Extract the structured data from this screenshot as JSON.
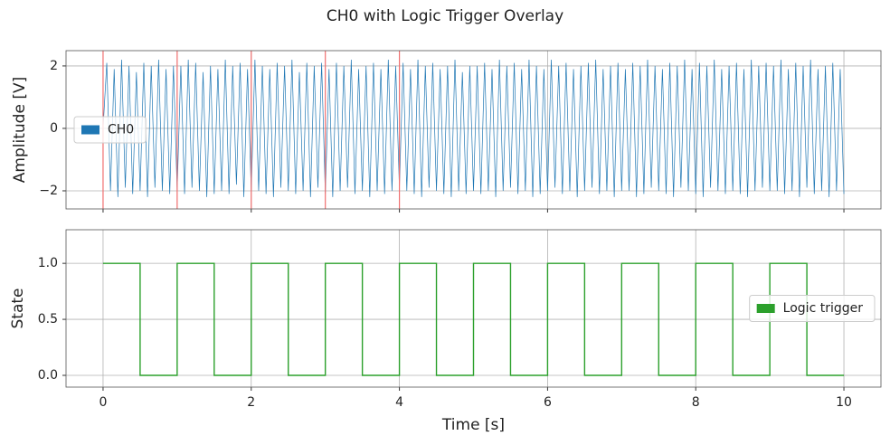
{
  "title": "CH0 with Logic Trigger Overlay",
  "chart_data": [
    {
      "type": "line",
      "ylabel": "Amplitude [V]",
      "xlim": [
        -0.5,
        10.5
      ],
      "ylim": [
        -2.58,
        2.49
      ],
      "xticks": [
        0,
        2,
        4,
        6,
        8,
        10
      ],
      "xtick_labels": false,
      "yticks": [
        {
          "value": -2,
          "label": "−2"
        },
        0,
        2
      ],
      "grid": true,
      "legend": "center left",
      "vlines": [
        0,
        1,
        2,
        3,
        4
      ],
      "vline_color": "#f07070",
      "x": [
        0,
        0.05,
        0.1,
        0.15,
        0.2,
        0.25,
        0.3,
        0.35,
        0.4,
        0.45,
        0.5,
        0.55,
        0.6,
        0.65,
        0.7,
        0.75,
        0.8,
        0.85,
        0.9,
        0.95,
        1,
        1.05,
        1.1,
        1.15,
        1.2,
        1.25,
        1.3,
        1.35,
        1.4,
        1.45,
        1.5,
        1.55,
        1.6,
        1.65,
        1.7,
        1.75,
        1.8,
        1.85,
        1.9,
        1.95,
        2,
        2.05,
        2.1,
        2.15,
        2.2,
        2.25,
        2.3,
        2.35,
        2.4,
        2.45,
        2.5,
        2.55,
        2.6,
        2.65,
        2.7,
        2.75,
        2.8,
        2.85,
        2.9,
        2.95,
        3,
        3.05,
        3.1,
        3.15,
        3.2,
        3.25,
        3.3,
        3.35,
        3.4,
        3.45,
        3.5,
        3.55,
        3.6,
        3.65,
        3.7,
        3.75,
        3.8,
        3.85,
        3.9,
        3.95,
        4,
        4.05,
        4.1,
        4.15,
        4.2,
        4.25,
        4.3,
        4.35,
        4.4,
        4.45,
        4.5,
        4.55,
        4.6,
        4.65,
        4.7,
        4.75,
        4.8,
        4.85,
        4.9,
        4.95,
        5,
        5.05,
        5.1,
        5.15,
        5.2,
        5.25,
        5.3,
        5.35,
        5.4,
        5.45,
        5.5,
        5.55,
        5.6,
        5.65,
        5.7,
        5.75,
        5.8,
        5.85,
        5.9,
        5.95,
        6,
        6.05,
        6.1,
        6.15,
        6.2,
        6.25,
        6.3,
        6.35,
        6.4,
        6.45,
        6.5,
        6.55,
        6.6,
        6.65,
        6.7,
        6.75,
        6.8,
        6.85,
        6.9,
        6.95,
        7,
        7.05,
        7.1,
        7.15,
        7.2,
        7.25,
        7.3,
        7.35,
        7.4,
        7.45,
        7.5,
        7.55,
        7.6,
        7.65,
        7.7,
        7.75,
        7.8,
        7.85,
        7.9,
        7.95,
        8,
        8.05,
        8.1,
        8.15,
        8.2,
        8.25,
        8.3,
        8.35,
        8.4,
        8.45,
        8.5,
        8.55,
        8.6,
        8.65,
        8.7,
        8.75,
        8.8,
        8.85,
        8.9,
        8.95,
        9,
        9.05,
        9.1,
        9.15,
        9.2,
        9.25,
        9.3,
        9.35,
        9.4,
        9.45,
        9.5,
        9.55,
        9.6,
        9.65,
        9.7,
        9.75,
        9.8,
        9.85,
        9.9,
        9.95,
        10
      ],
      "series": [
        {
          "name": "CH0",
          "color": "#1f77b4",
          "values": [
            0,
            2.1,
            -2.0,
            1.9,
            -2.2,
            2.2,
            -1.9,
            2.0,
            -2.1,
            1.8,
            -2.0,
            2.1,
            -2.2,
            2.0,
            -1.9,
            2.2,
            -2.0,
            1.9,
            -2.1,
            2.0,
            -2.0,
            2.0,
            -2.1,
            2.2,
            -1.9,
            2.1,
            -2.0,
            1.8,
            -2.2,
            2.0,
            -2.1,
            1.9,
            -2.0,
            2.2,
            -2.1,
            2.0,
            -1.8,
            2.1,
            -2.2,
            1.9,
            -2.0,
            2.2,
            -2.0,
            2.0,
            -2.1,
            1.9,
            -2.2,
            2.1,
            -1.9,
            2.0,
            -2.0,
            2.2,
            -2.1,
            1.8,
            -2.0,
            2.1,
            -2.2,
            2.0,
            -1.9,
            2.1,
            -2.1,
            1.9,
            -2.2,
            2.1,
            -2.0,
            2.0,
            -1.9,
            2.2,
            -2.1,
            1.9,
            -2.0,
            2.0,
            -2.2,
            2.1,
            -2.0,
            1.9,
            -2.1,
            2.2,
            -2.0,
            2.0,
            -1.9,
            2.1,
            -2.0,
            1.9,
            -2.1,
            2.2,
            -2.2,
            2.0,
            -1.9,
            2.1,
            -2.0,
            1.9,
            -2.1,
            2.0,
            -2.2,
            2.2,
            -2.0,
            1.8,
            -2.1,
            2.0,
            -2.0,
            2.0,
            -2.1,
            2.1,
            -2.0,
            1.9,
            -2.2,
            2.2,
            -2.0,
            2.0,
            -1.9,
            2.1,
            -2.1,
            1.9,
            -2.0,
            2.2,
            -2.2,
            2.0,
            -2.1,
            1.9,
            -2.0,
            2.2,
            -1.9,
            2.0,
            -2.1,
            2.1,
            -2.0,
            1.9,
            -2.2,
            2.0,
            -2.0,
            2.1,
            -1.9,
            2.2,
            -2.1,
            1.9,
            -2.0,
            2.0,
            -2.2,
            2.1,
            -2.0,
            1.9,
            -2.0,
            2.1,
            -2.2,
            2.0,
            -2.1,
            2.2,
            -1.9,
            2.0,
            -2.0,
            1.9,
            -2.1,
            2.1,
            -2.2,
            2.0,
            -1.9,
            2.2,
            -2.0,
            1.9,
            -2.1,
            2.1,
            -2.2,
            2.0,
            -1.9,
            2.2,
            -2.0,
            1.9,
            -2.1,
            2.0,
            -2.0,
            2.1,
            -2.1,
            1.9,
            -2.2,
            2.2,
            -2.0,
            2.0,
            -1.9,
            2.1,
            -2.0,
            2.0,
            -2.0,
            2.2,
            -2.1,
            1.9,
            -2.0,
            2.1,
            -2.2,
            2.0,
            -1.9,
            2.2,
            -2.1,
            1.9,
            -2.0,
            2.0,
            -2.2,
            2.1,
            -2.0,
            1.9,
            -2.1
          ]
        }
      ]
    },
    {
      "type": "step",
      "ylabel": "State",
      "xlabel": "Time [s]",
      "xlim": [
        -0.5,
        10.5
      ],
      "ylim": [
        -0.105,
        1.3
      ],
      "xticks": [
        0,
        2,
        4,
        6,
        8,
        10
      ],
      "yticks": [
        {
          "value": 0,
          "label": "0.0"
        },
        {
          "value": 0.5,
          "label": "0.5"
        },
        {
          "value": 1,
          "label": "1.0"
        }
      ],
      "grid": true,
      "legend": "center right",
      "x": [
        0,
        0.5,
        1,
        1.5,
        2,
        2.5,
        3,
        3.5,
        4,
        4.5,
        5,
        5.5,
        6,
        6.5,
        7,
        7.5,
        8,
        8.5,
        9,
        9.5,
        10
      ],
      "series": [
        {
          "name": "Logic trigger",
          "color": "#2ca02c",
          "values": [
            1,
            0,
            1,
            0,
            1,
            0,
            1,
            0,
            1,
            0,
            1,
            0,
            1,
            0,
            1,
            0,
            1,
            0,
            1,
            0,
            0
          ]
        }
      ]
    }
  ]
}
